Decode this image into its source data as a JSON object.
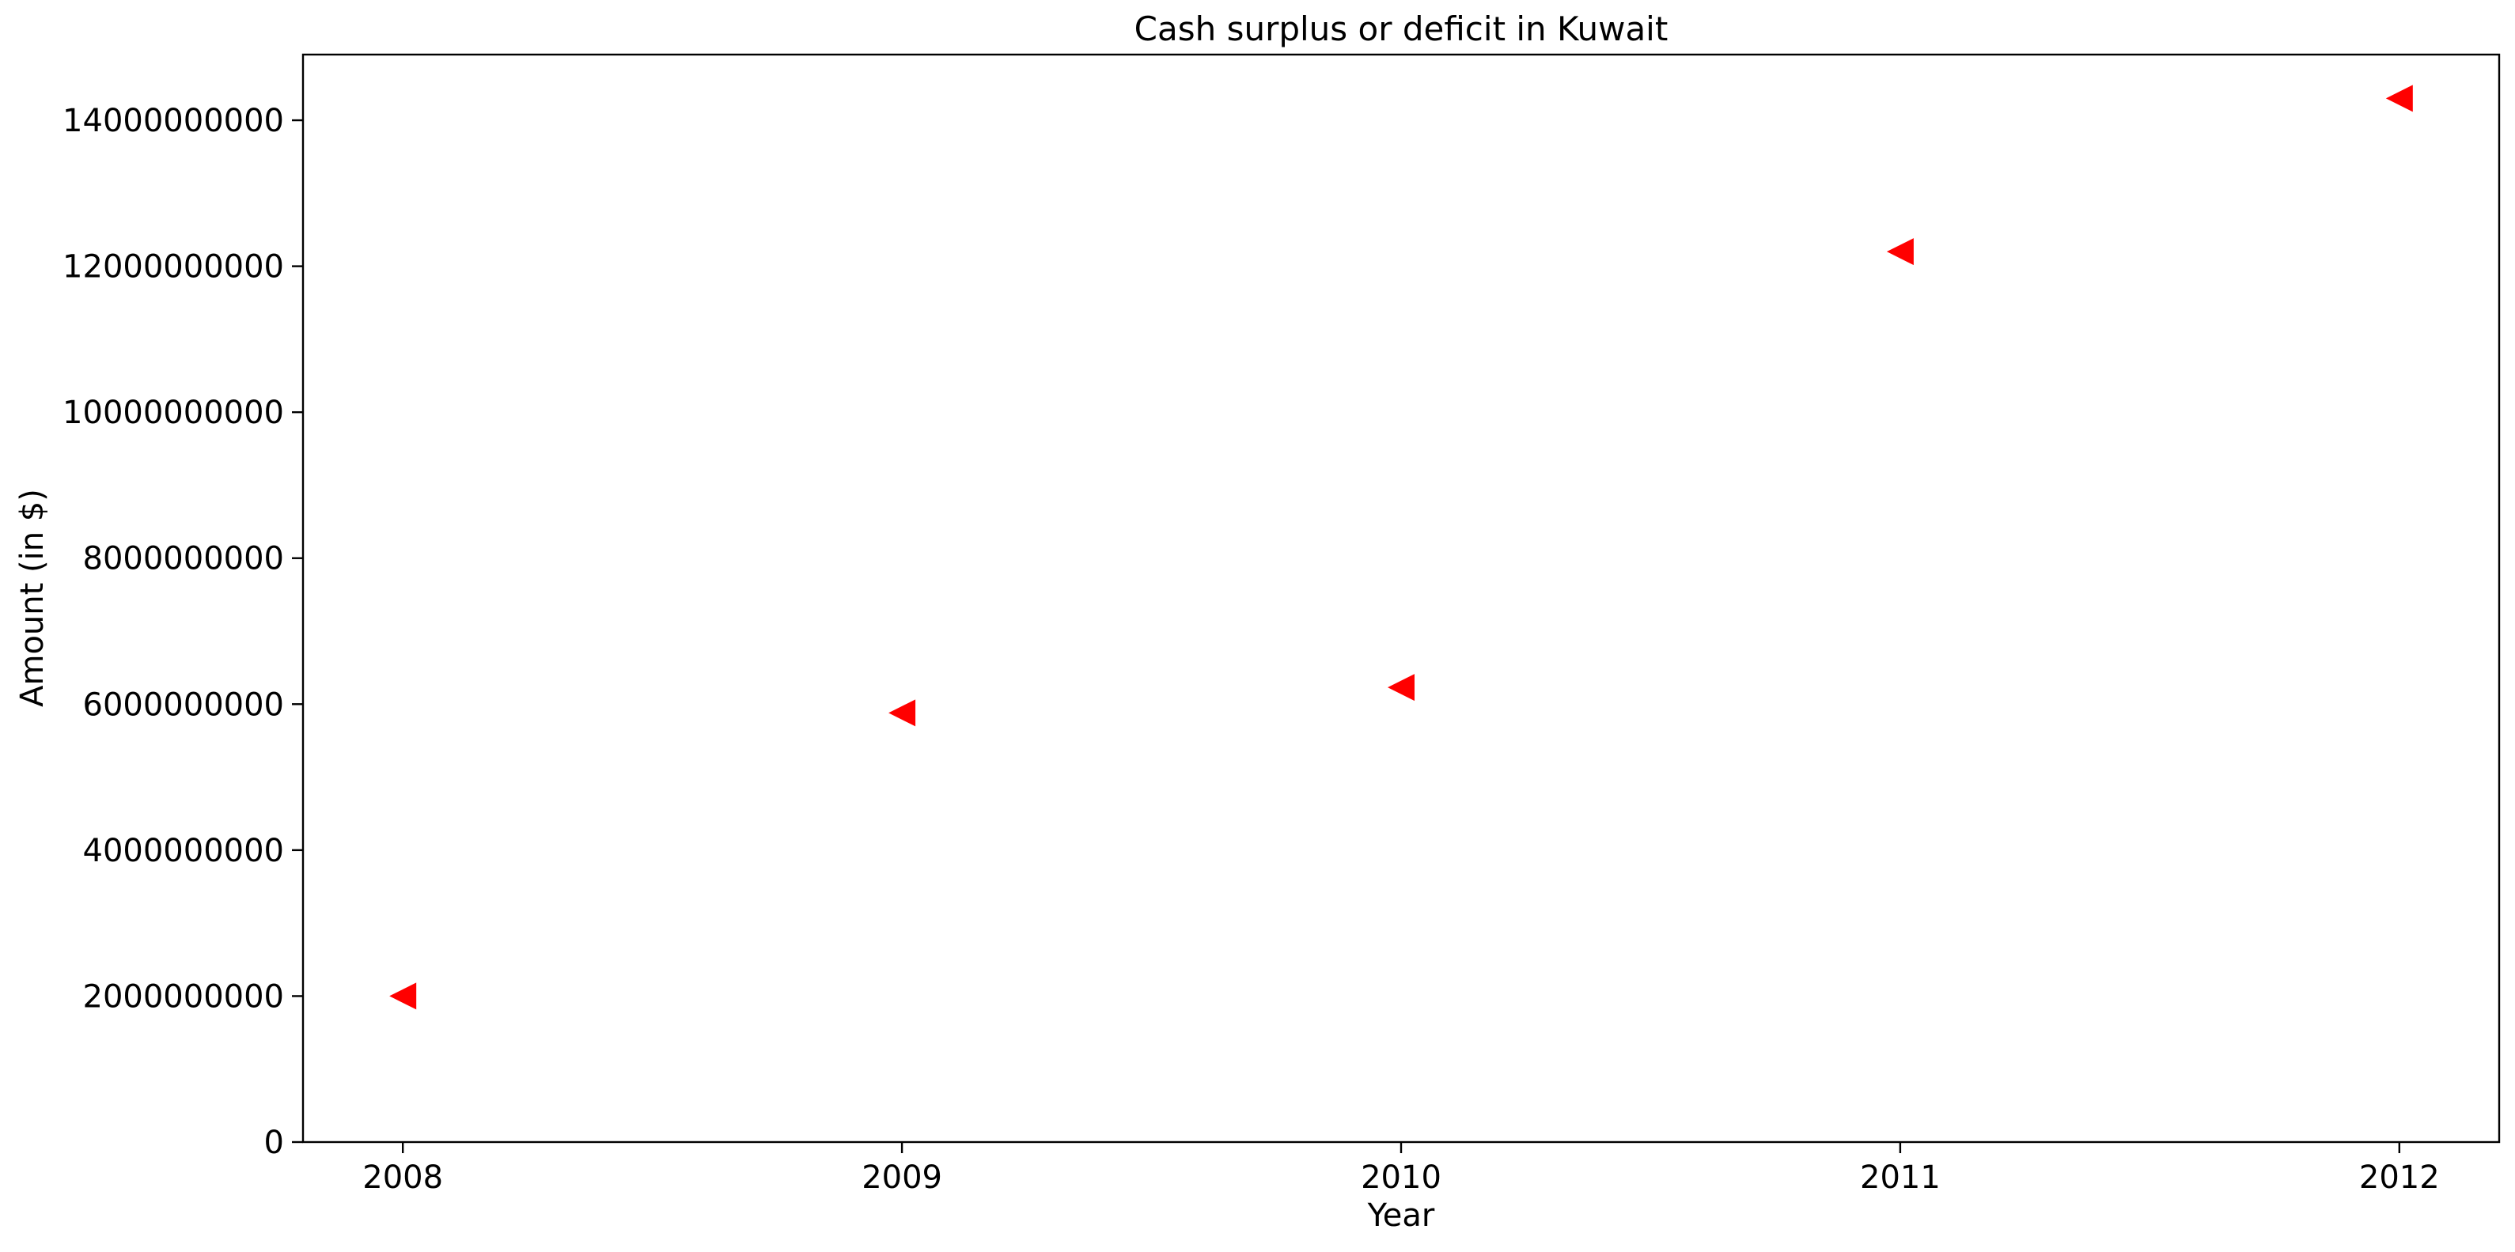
{
  "chart_data": {
    "type": "scatter",
    "title": "Cash surplus or deficit in Kuwait",
    "xlabel": "Year",
    "ylabel": "Amount (in $)",
    "x": [
      "2008",
      "2009",
      "2010",
      "2011",
      "2012"
    ],
    "series": [
      {
        "values": [
          2000000000,
          5880000000,
          6230000000,
          12200000000,
          14300000000
        ],
        "color": "#ff0000",
        "marker": "triangle-left"
      }
    ],
    "xlim": [
      2007.8,
      2012.2
    ],
    "ylim": [
      0,
      14900000000
    ],
    "yticks": [
      0,
      2000000000,
      4000000000,
      6000000000,
      8000000000,
      10000000000,
      12000000000,
      14000000000
    ],
    "ytick_labels": [
      "0",
      "2000000000",
      "4000000000",
      "6000000000",
      "8000000000",
      "10000000000",
      "12000000000",
      "14000000000"
    ],
    "xticks": [
      2008,
      2009,
      2010,
      2011,
      2012
    ],
    "xtick_labels": [
      "2008",
      "2009",
      "2010",
      "2011",
      "2012"
    ],
    "grid": false,
    "legend": "none"
  }
}
